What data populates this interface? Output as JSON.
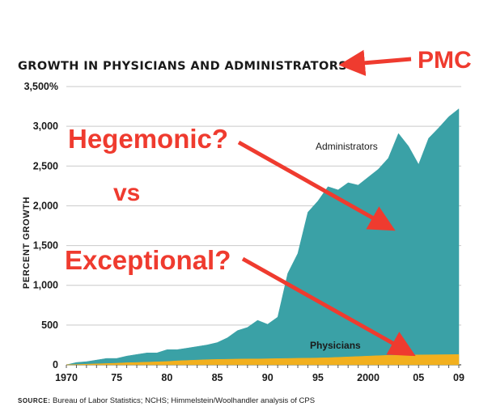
{
  "chart_data": {
    "type": "area",
    "title": "GROWTH IN PHYSICIANS AND ADMINISTRATORS",
    "ylabel": "PERCENT GROWTH",
    "xlabel": "",
    "ylim": [
      0,
      3500
    ],
    "xlim": [
      1970,
      2009
    ],
    "grid": true,
    "y_ticks": [
      "0",
      "500",
      "1,000",
      "1,500",
      "2,000",
      "2,500",
      "3,000",
      "3,500%"
    ],
    "x_ticks": [
      "1970",
      "75",
      "80",
      "85",
      "90",
      "95",
      "2000",
      "05",
      "09"
    ],
    "series": [
      {
        "name": "Administrators",
        "color": "#3aa1a6",
        "x": [
          1970,
          1971,
          1972,
          1973,
          1974,
          1975,
          1976,
          1977,
          1978,
          1979,
          1980,
          1981,
          1982,
          1983,
          1984,
          1985,
          1986,
          1987,
          1988,
          1989,
          1990,
          1991,
          1992,
          1993,
          1994,
          1995,
          1996,
          1997,
          1998,
          1999,
          2000,
          2001,
          2002,
          2003,
          2004,
          2005,
          2006,
          2007,
          2008,
          2009
        ],
        "values": [
          0,
          30,
          40,
          60,
          80,
          80,
          110,
          130,
          150,
          150,
          190,
          190,
          210,
          230,
          250,
          280,
          340,
          430,
          470,
          560,
          510,
          600,
          1150,
          1400,
          1920,
          2060,
          2240,
          2200,
          2290,
          2260,
          2360,
          2460,
          2600,
          2910,
          2750,
          2520,
          2850,
          2980,
          3120,
          3220
        ]
      },
      {
        "name": "Physicians",
        "color": "#f2b01e",
        "x": [
          1970,
          1971,
          1972,
          1973,
          1974,
          1975,
          1976,
          1977,
          1978,
          1979,
          1980,
          1981,
          1982,
          1983,
          1984,
          1985,
          1986,
          1987,
          1988,
          1989,
          1990,
          1991,
          1992,
          1993,
          1994,
          1995,
          1996,
          1997,
          1998,
          1999,
          2000,
          2001,
          2002,
          2003,
          2004,
          2005,
          2006,
          2007,
          2008,
          2009
        ],
        "values": [
          0,
          4,
          8,
          12,
          16,
          20,
          26,
          30,
          34,
          38,
          42,
          50,
          55,
          60,
          65,
          68,
          70,
          72,
          74,
          74,
          76,
          78,
          80,
          82,
          84,
          86,
          90,
          95,
          100,
          105,
          110,
          115,
          120,
          122,
          124,
          125,
          126,
          127,
          128,
          130
        ]
      }
    ],
    "series_labels": {
      "administrators": "Administrators",
      "physicians": "Physicians"
    },
    "annotations": [
      {
        "text": "PMC",
        "color": "#ef3b2f"
      },
      {
        "text": "Hegemonic?",
        "color": "#ef3b2f"
      },
      {
        "text": "vs",
        "color": "#ef3b2f"
      },
      {
        "text": "Exceptional?",
        "color": "#ef3b2f"
      }
    ],
    "source": {
      "prefix": "SOURCE:",
      "text": " Bureau of Labor Statistics; NCHS; Himmelstein/Woolhandler analysis of CPS"
    }
  }
}
